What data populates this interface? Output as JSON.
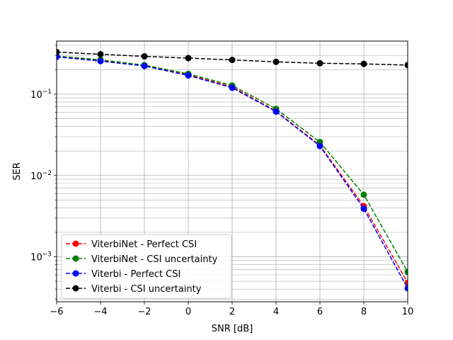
{
  "chart_data": {
    "type": "line",
    "xlabel": "SNR [dB]",
    "ylabel": "SER",
    "xlim": [
      -6,
      10
    ],
    "ylim": [
      0.00028,
      0.45
    ],
    "yscale": "log",
    "grid": true,
    "legend_position": "lower-left",
    "x_ticks": [
      -6,
      -4,
      -2,
      0,
      2,
      4,
      6,
      8,
      10
    ],
    "x_tick_labels": [
      "−6",
      "−4",
      "−2",
      "0",
      "2",
      "4",
      "6",
      "8",
      "10"
    ],
    "y_major_ticks": [
      0.001,
      0.01,
      0.1
    ],
    "y_tick_labels": [
      {
        "base": "10",
        "exp": "−3"
      },
      {
        "base": "10",
        "exp": "−2"
      },
      {
        "base": "10",
        "exp": "−1"
      }
    ],
    "x": [
      -6,
      -4,
      -2,
      0,
      2,
      4,
      6,
      8,
      10
    ],
    "series": [
      {
        "name": "ViterbiNet - Perfect CSI",
        "color": "#ff0000",
        "values": [
          0.29,
          0.26,
          0.225,
          0.173,
          0.123,
          0.062,
          0.0235,
          0.0042,
          0.00048
        ]
      },
      {
        "name": "ViterbiNet - CSI uncertainty",
        "color": "#008000",
        "values": [
          0.295,
          0.265,
          0.228,
          0.178,
          0.128,
          0.066,
          0.0258,
          0.0058,
          0.00065
        ]
      },
      {
        "name": "Viterbi - Perfect CSI",
        "color": "#0000ff",
        "values": [
          0.288,
          0.255,
          0.222,
          0.17,
          0.12,
          0.061,
          0.023,
          0.0039,
          0.00041
        ]
      },
      {
        "name": "Viterbi - CSI uncertainty",
        "color": "#000000",
        "values": [
          0.33,
          0.31,
          0.292,
          0.278,
          0.264,
          0.25,
          0.24,
          0.236,
          0.228
        ]
      }
    ]
  }
}
